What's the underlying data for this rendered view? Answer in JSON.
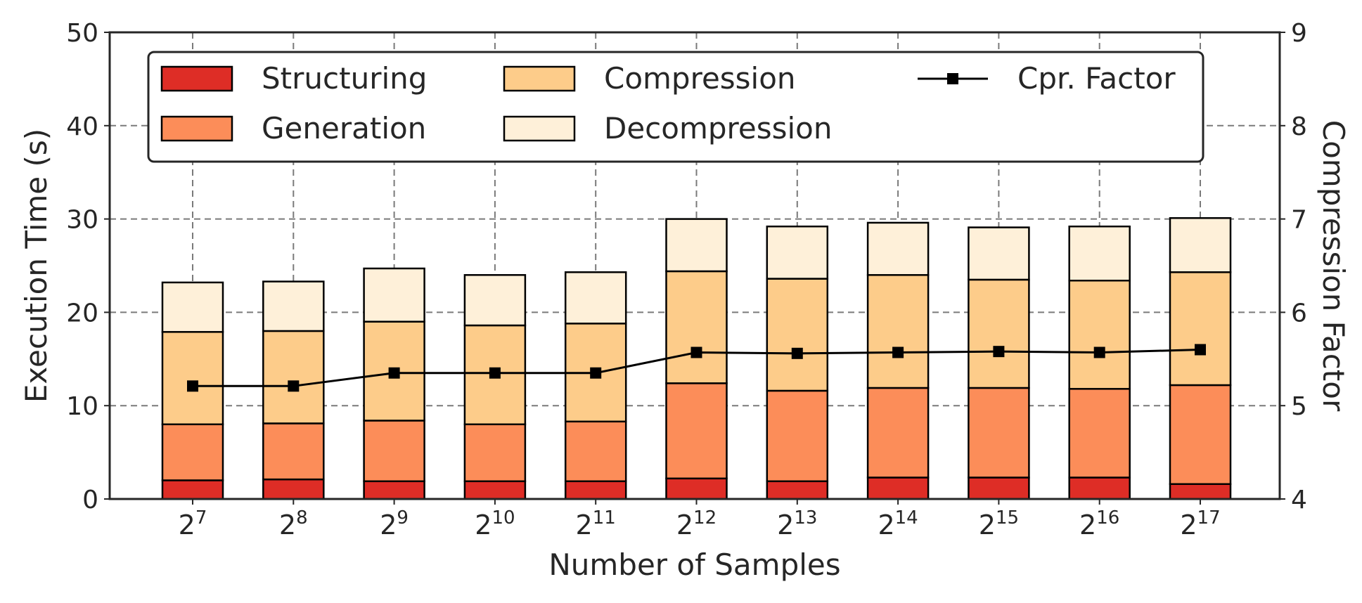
{
  "chart_data": {
    "type": "bar",
    "stacked": true,
    "xlabel": "Number of Samples",
    "ylabel": "Execution Time (s)",
    "y2label": "Compression Factor",
    "ylim": [
      0,
      50
    ],
    "y2lim": [
      4,
      9
    ],
    "yticks": [
      "0",
      "10",
      "20",
      "30",
      "40",
      "50"
    ],
    "y2ticks": [
      "4",
      "5",
      "6",
      "7",
      "8",
      "9"
    ],
    "grid": true,
    "legend_position": "top",
    "categories": [
      {
        "base": "2",
        "exp": "7"
      },
      {
        "base": "2",
        "exp": "8"
      },
      {
        "base": "2",
        "exp": "9"
      },
      {
        "base": "2",
        "exp": "10"
      },
      {
        "base": "2",
        "exp": "11"
      },
      {
        "base": "2",
        "exp": "12"
      },
      {
        "base": "2",
        "exp": "13"
      },
      {
        "base": "2",
        "exp": "14"
      },
      {
        "base": "2",
        "exp": "15"
      },
      {
        "base": "2",
        "exp": "16"
      },
      {
        "base": "2",
        "exp": "17"
      }
    ],
    "series": [
      {
        "name": "Structuring",
        "color": "#de2d26",
        "values": [
          2.0,
          2.1,
          1.9,
          1.9,
          1.9,
          2.2,
          1.9,
          2.3,
          2.3,
          2.3,
          1.6
        ]
      },
      {
        "name": "Generation",
        "color": "#fc8d59",
        "values": [
          6.0,
          6.0,
          6.5,
          6.1,
          6.4,
          10.2,
          9.7,
          9.6,
          9.6,
          9.5,
          10.6
        ]
      },
      {
        "name": "Compression",
        "color": "#fdcc8a",
        "values": [
          9.9,
          9.9,
          10.6,
          10.6,
          10.5,
          12.0,
          12.0,
          12.1,
          11.6,
          11.6,
          12.1
        ]
      },
      {
        "name": "Decompression",
        "color": "#fef0d9",
        "values": [
          5.3,
          5.3,
          5.7,
          5.4,
          5.5,
          5.6,
          5.6,
          5.6,
          5.6,
          5.8,
          5.8
        ]
      }
    ],
    "line_series": {
      "name": "Cpr. Factor",
      "color": "#000000",
      "axis": "right",
      "values": [
        5.21,
        5.21,
        5.35,
        5.35,
        5.35,
        5.57,
        5.56,
        5.57,
        5.58,
        5.57,
        5.6
      ]
    }
  }
}
